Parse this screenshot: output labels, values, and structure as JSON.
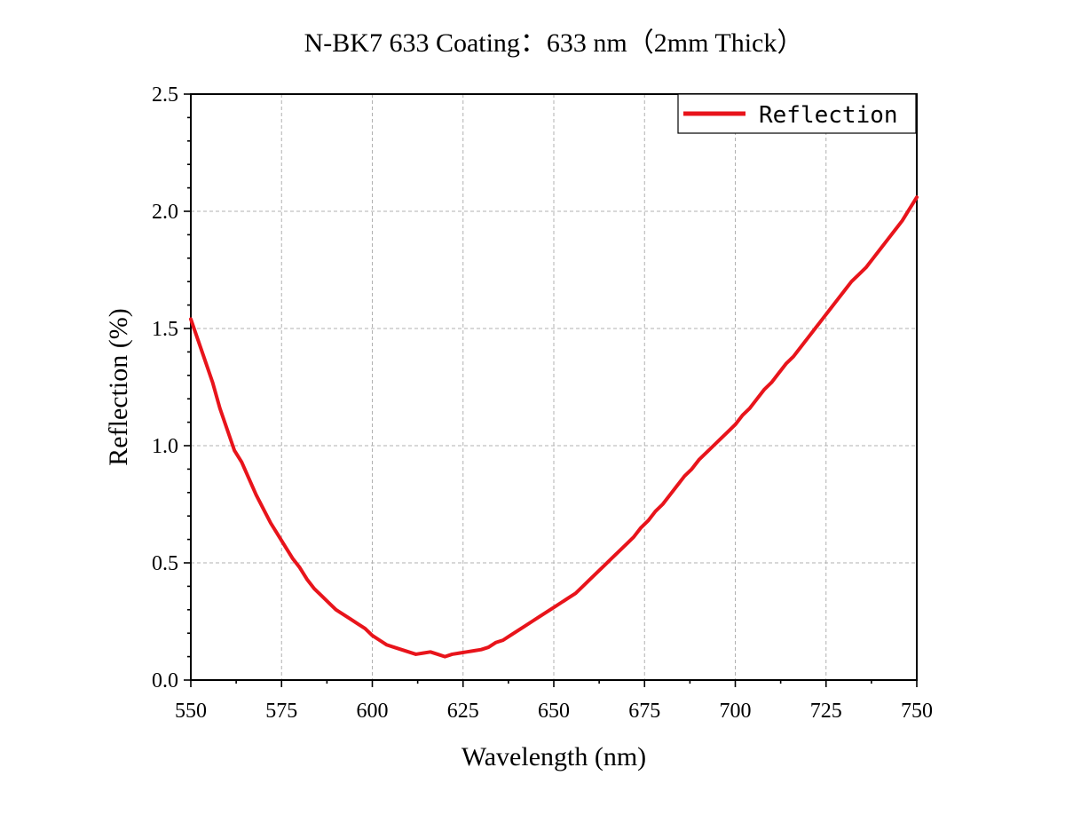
{
  "chart_data": {
    "type": "line",
    "title": "N-BK7 633 Coating：633 nm（2mm Thick）",
    "xlabel": "Wavelength (nm)",
    "ylabel": "Reflection (%)",
    "xlim": [
      550,
      750
    ],
    "ylim": [
      0.0,
      2.5
    ],
    "xticks": [
      "550",
      "575",
      "600",
      "625",
      "650",
      "675",
      "700",
      "725",
      "750"
    ],
    "yticks": [
      "0.0",
      "0.5",
      "1.0",
      "1.5",
      "2.0",
      "2.5"
    ],
    "grid": true,
    "legend_position": "top-right",
    "series": [
      {
        "name": "Reflection",
        "color": "#e8141b",
        "x": [
          550,
          552,
          554,
          556,
          558,
          560,
          562,
          564,
          566,
          568,
          570,
          572,
          574,
          576,
          578,
          580,
          582,
          584,
          586,
          588,
          590,
          592,
          594,
          596,
          598,
          600,
          602,
          604,
          606,
          608,
          610,
          612,
          614,
          616,
          618,
          620,
          622,
          624,
          626,
          628,
          630,
          632,
          634,
          636,
          638,
          640,
          642,
          644,
          646,
          648,
          650,
          652,
          654,
          656,
          658,
          660,
          662,
          664,
          666,
          668,
          670,
          672,
          674,
          676,
          678,
          680,
          682,
          684,
          686,
          688,
          690,
          692,
          694,
          696,
          698,
          700,
          702,
          704,
          706,
          708,
          710,
          712,
          714,
          716,
          718,
          720,
          722,
          724,
          726,
          728,
          730,
          732,
          734,
          736,
          738,
          740,
          742,
          744,
          746,
          748,
          750
        ],
        "y": [
          1.54,
          1.45,
          1.36,
          1.27,
          1.16,
          1.07,
          0.98,
          0.93,
          0.86,
          0.79,
          0.73,
          0.67,
          0.62,
          0.57,
          0.52,
          0.48,
          0.43,
          0.39,
          0.36,
          0.33,
          0.3,
          0.28,
          0.26,
          0.24,
          0.22,
          0.19,
          0.17,
          0.15,
          0.14,
          0.13,
          0.12,
          0.11,
          0.115,
          0.12,
          0.11,
          0.1,
          0.11,
          0.115,
          0.12,
          0.125,
          0.13,
          0.14,
          0.16,
          0.17,
          0.19,
          0.21,
          0.23,
          0.25,
          0.27,
          0.29,
          0.31,
          0.33,
          0.35,
          0.37,
          0.4,
          0.43,
          0.46,
          0.49,
          0.52,
          0.55,
          0.58,
          0.61,
          0.65,
          0.68,
          0.72,
          0.75,
          0.79,
          0.83,
          0.87,
          0.9,
          0.94,
          0.97,
          1.0,
          1.03,
          1.06,
          1.09,
          1.13,
          1.16,
          1.2,
          1.24,
          1.27,
          1.31,
          1.35,
          1.38,
          1.42,
          1.46,
          1.5,
          1.54,
          1.58,
          1.62,
          1.66,
          1.7,
          1.73,
          1.76,
          1.8,
          1.84,
          1.88,
          1.92,
          1.96,
          2.01,
          2.06
        ]
      }
    ]
  }
}
